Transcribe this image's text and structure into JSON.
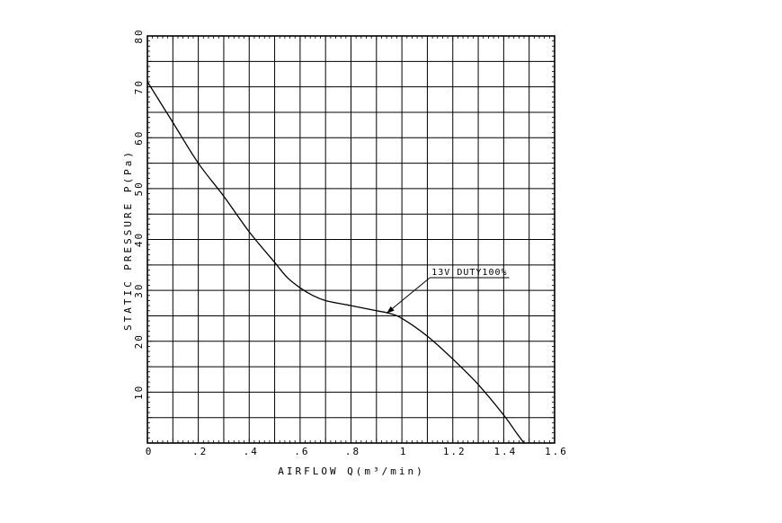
{
  "chart_data": {
    "type": "line",
    "xlabel": "AIRFLOW Q(m³/min)",
    "ylabel": "STATIC PRESSURE P(Pa)",
    "xlim": [
      0,
      1.6
    ],
    "ylim": [
      0,
      80
    ],
    "x_ticks": [
      0,
      0.2,
      0.4,
      0.6,
      0.8,
      1.0,
      1.2,
      1.4,
      1.6
    ],
    "x_tick_labels": [
      "0",
      ".2",
      ".4",
      ".6",
      ".8",
      "1",
      "1.2",
      "1.4",
      "1.6"
    ],
    "y_ticks": [
      10,
      20,
      30,
      40,
      50,
      60,
      70,
      80
    ],
    "y_tick_labels": [
      "10",
      "20",
      "30",
      "40",
      "50",
      "60",
      "70",
      "80"
    ],
    "grid": true,
    "grid_x_step": 0.1,
    "grid_y_step": 5,
    "series": [
      {
        "name": "13V DUTY100%",
        "x": [
          0,
          0.1,
          0.2,
          0.3,
          0.4,
          0.5,
          0.55,
          0.6,
          0.65,
          0.7,
          0.8,
          0.9,
          0.95,
          1.0,
          1.1,
          1.2,
          1.3,
          1.4,
          1.45,
          1.48
        ],
        "y": [
          71,
          63,
          55,
          48.5,
          41.5,
          35.5,
          32.5,
          30.5,
          29,
          28,
          27,
          26,
          25.5,
          24.5,
          21,
          16.5,
          11.5,
          5.5,
          2,
          0
        ]
      }
    ],
    "annotations": [
      {
        "text": "13V DUTY100%",
        "series": 0,
        "point_x": 0.94,
        "point_y": 25.5,
        "label_x": 1.11,
        "label_y": 32.5
      }
    ]
  }
}
